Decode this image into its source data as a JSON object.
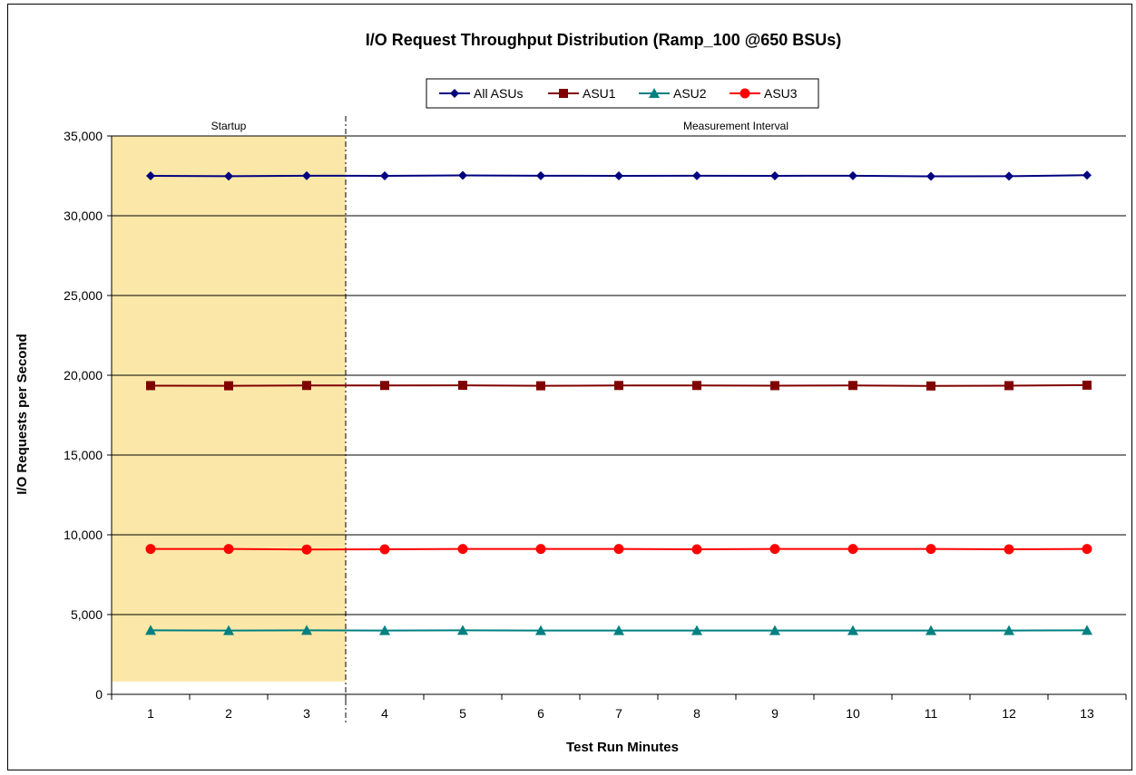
{
  "chart_data": {
    "type": "line",
    "title": "I/O Request Throughput Distribution (Ramp_100 @650 BSUs)",
    "xlabel": "Test Run Minutes",
    "ylabel": "I/O Requests  per Second",
    "x": [
      1,
      2,
      3,
      4,
      5,
      6,
      7,
      8,
      9,
      10,
      11,
      12,
      13
    ],
    "ylim": [
      0,
      35000
    ],
    "yticks": [
      0,
      5000,
      10000,
      15000,
      20000,
      25000,
      30000,
      35000
    ],
    "ytick_labels": [
      "0",
      "5,000",
      "10,000",
      "15,000",
      "20,000",
      "25,000",
      "30,000",
      "35,000"
    ],
    "grid": true,
    "legend_position": "top-center",
    "phases": [
      {
        "label": "Startup",
        "start": 1,
        "end": 3,
        "color": "#fbe8a8"
      },
      {
        "label": "Measurement Interval",
        "start": 4,
        "end": 13
      }
    ],
    "series": [
      {
        "name": "All ASUs",
        "color": "#000080",
        "marker": "diamond",
        "values": [
          32500,
          32480,
          32510,
          32500,
          32530,
          32510,
          32500,
          32510,
          32500,
          32510,
          32470,
          32480,
          32540
        ]
      },
      {
        "name": "ASU1",
        "color": "#800000",
        "marker": "square",
        "values": [
          19350,
          19340,
          19360,
          19360,
          19370,
          19340,
          19360,
          19360,
          19350,
          19360,
          19330,
          19350,
          19380
        ]
      },
      {
        "name": "ASU2",
        "color": "#008080",
        "marker": "triangle",
        "values": [
          4010,
          4000,
          4010,
          4000,
          4010,
          4000,
          4000,
          4000,
          4000,
          4000,
          4000,
          4000,
          4010
        ]
      },
      {
        "name": "ASU3",
        "color": "#ff0000",
        "marker": "circle",
        "values": [
          9110,
          9110,
          9080,
          9090,
          9110,
          9110,
          9110,
          9090,
          9110,
          9110,
          9110,
          9090,
          9110
        ]
      }
    ]
  }
}
